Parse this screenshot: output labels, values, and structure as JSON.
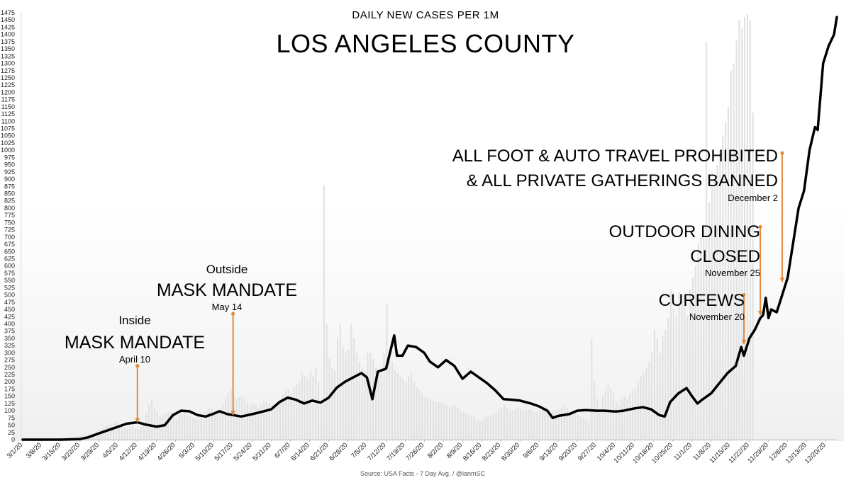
{
  "chart_data": {
    "type": "line",
    "subtitle": "DAILY NEW CASES PER 1M",
    "title": "LOS ANGELES COUNTY",
    "source": "Source: USA Facts - 7 Day Avg. / @ianmSC",
    "ylim": [
      0,
      1475
    ],
    "ytick_step": 25,
    "x_start": "3/1/20",
    "x_end": "12/24/20",
    "x_tick_labels": [
      "3/1/20",
      "3/8/20",
      "3/15/20",
      "3/22/20",
      "3/29/20",
      "4/5/20",
      "4/12/20",
      "4/19/20",
      "4/26/20",
      "5/3/20",
      "5/10/20",
      "5/17/20",
      "5/24/20",
      "5/31/20",
      "6/7/20",
      "6/14/20",
      "6/21/20",
      "6/28/20",
      "7/5/20",
      "7/12/20",
      "7/19/20",
      "7/26/20",
      "8/2/20",
      "8/9/20",
      "8/16/20",
      "8/23/20",
      "8/30/20",
      "9/6/20",
      "9/13/20",
      "9/20/20",
      "9/27/20",
      "10/4/20",
      "10/11/20",
      "10/18/20",
      "10/25/20",
      "11/1/20",
      "11/8/20",
      "11/15/20",
      "11/22/20",
      "11/29/20",
      "12/6/20",
      "12/13/20",
      "12/20/20"
    ],
    "series": [
      {
        "type": "bar",
        "color": "#e2e2e2",
        "values": [
          0,
          0,
          0,
          0,
          0,
          0,
          0,
          0,
          2,
          1,
          2,
          3,
          2,
          3,
          5,
          4,
          6,
          8,
          7,
          10,
          12,
          14,
          16,
          18,
          20,
          22,
          25,
          30,
          35,
          40,
          45,
          50,
          55,
          60,
          62,
          50,
          45,
          40,
          38,
          45,
          50,
          40,
          35,
          45,
          55,
          90,
          120,
          140,
          110,
          95,
          80,
          85,
          90,
          95,
          100,
          80,
          75,
          85,
          90,
          95,
          85,
          80,
          75,
          70,
          85,
          90,
          95,
          100,
          110,
          105,
          100,
          95,
          110,
          120,
          150,
          160,
          175,
          150,
          140,
          145,
          150,
          140,
          130,
          120,
          125,
          120,
          110,
          125,
          135,
          130,
          125,
          120,
          115,
          130,
          140,
          155,
          170,
          175,
          160,
          180,
          190,
          200,
          230,
          220,
          210,
          235,
          220,
          250,
          200,
          120,
          880,
          400,
          280,
          250,
          240,
          350,
          400,
          320,
          300,
          310,
          400,
          350,
          300,
          270,
          250,
          240,
          300,
          300,
          280,
          250,
          240,
          250,
          300,
          470,
          280,
          270,
          240,
          230,
          220,
          210,
          200,
          220,
          230,
          200,
          180,
          170,
          160,
          150,
          145,
          140,
          135,
          130,
          130,
          130,
          125,
          120,
          115,
          115,
          120,
          110,
          100,
          95,
          90,
          85,
          85,
          80,
          70,
          65,
          65,
          75,
          80,
          85,
          90,
          95,
          100,
          110,
          120,
          110,
          100,
          100,
          105,
          110,
          105,
          100,
          100,
          105,
          100,
          95,
          95,
          100,
          105,
          100,
          95,
          95,
          100,
          100,
          105,
          110,
          115,
          110,
          100,
          95,
          90,
          85,
          80,
          75,
          70,
          60,
          350,
          200,
          140,
          95,
          150,
          170,
          190,
          180,
          160,
          130,
          120,
          140,
          150,
          140,
          160,
          170,
          180,
          200,
          220,
          230,
          250,
          270,
          300,
          380,
          350,
          300,
          360,
          380,
          420,
          520,
          450,
          430,
          510,
          480,
          500,
          430,
          520,
          560,
          600,
          680,
          700,
          720,
          1375,
          820,
          880,
          900,
          950,
          1000,
          1050,
          1100,
          1150,
          1275,
          1300,
          1380,
          1450,
          1420,
          1460,
          1470,
          1450,
          1130
        ]
      },
      {
        "type": "line",
        "color": "#000000",
        "points": [
          [
            "3/1/20",
            0
          ],
          [
            "3/8/20",
            0
          ],
          [
            "3/15/20",
            0
          ],
          [
            "3/22/20",
            2
          ],
          [
            "3/25/20",
            8
          ],
          [
            "3/29/20",
            22
          ],
          [
            "4/2/20",
            35
          ],
          [
            "4/5/20",
            45
          ],
          [
            "4/8/20",
            55
          ],
          [
            "4/12/20",
            60
          ],
          [
            "4/15/20",
            52
          ],
          [
            "4/19/20",
            45
          ],
          [
            "4/22/20",
            50
          ],
          [
            "4/25/20",
            85
          ],
          [
            "4/28/20",
            100
          ],
          [
            "5/1/20",
            98
          ],
          [
            "5/4/20",
            85
          ],
          [
            "5/7/20",
            80
          ],
          [
            "5/10/20",
            90
          ],
          [
            "5/12/20",
            98
          ],
          [
            "5/15/20",
            88
          ],
          [
            "5/17/20",
            85
          ],
          [
            "5/20/20",
            80
          ],
          [
            "5/24/20",
            88
          ],
          [
            "5/27/20",
            95
          ],
          [
            "5/31/20",
            105
          ],
          [
            "6/3/20",
            130
          ],
          [
            "6/6/20",
            145
          ],
          [
            "6/9/20",
            138
          ],
          [
            "6/12/20",
            125
          ],
          [
            "6/15/20",
            135
          ],
          [
            "6/18/20",
            128
          ],
          [
            "6/21/20",
            145
          ],
          [
            "6/24/20",
            180
          ],
          [
            "6/27/20",
            200
          ],
          [
            "6/30/20",
            215
          ],
          [
            "7/3/20",
            230
          ],
          [
            "7/5/20",
            215
          ],
          [
            "7/7/20",
            140
          ],
          [
            "7/9/20",
            235
          ],
          [
            "7/12/20",
            245
          ],
          [
            "7/15/20",
            360
          ],
          [
            "7/16/20",
            290
          ],
          [
            "7/18/20",
            290
          ],
          [
            "7/20/20",
            325
          ],
          [
            "7/23/20",
            320
          ],
          [
            "7/26/20",
            300
          ],
          [
            "7/28/20",
            270
          ],
          [
            "7/31/20",
            250
          ],
          [
            "8/3/20",
            275
          ],
          [
            "8/6/20",
            255
          ],
          [
            "8/9/20",
            210
          ],
          [
            "8/12/20",
            235
          ],
          [
            "8/15/20",
            215
          ],
          [
            "8/18/20",
            195
          ],
          [
            "8/21/20",
            170
          ],
          [
            "8/24/20",
            140
          ],
          [
            "8/27/20",
            138
          ],
          [
            "8/30/20",
            135
          ],
          [
            "9/3/20",
            125
          ],
          [
            "9/6/20",
            115
          ],
          [
            "9/9/20",
            100
          ],
          [
            "9/11/20",
            75
          ],
          [
            "9/13/20",
            82
          ],
          [
            "9/17/20",
            88
          ],
          [
            "9/20/20",
            100
          ],
          [
            "9/23/20",
            102
          ],
          [
            "9/27/20",
            100
          ],
          [
            "9/30/20",
            100
          ],
          [
            "10/4/20",
            97
          ],
          [
            "10/7/20",
            100
          ],
          [
            "10/11/20",
            108
          ],
          [
            "10/14/20",
            112
          ],
          [
            "10/17/20",
            105
          ],
          [
            "10/20/20",
            85
          ],
          [
            "10/22/20",
            80
          ],
          [
            "10/24/20",
            130
          ],
          [
            "10/27/20",
            160
          ],
          [
            "10/30/20",
            178
          ],
          [
            "11/1/20",
            150
          ],
          [
            "11/3/20",
            125
          ],
          [
            "11/5/20",
            140
          ],
          [
            "11/8/20",
            160
          ],
          [
            "11/11/20",
            195
          ],
          [
            "11/14/20",
            230
          ],
          [
            "11/17/20",
            255
          ],
          [
            "11/19/20",
            320
          ],
          [
            "11/20/20",
            290
          ],
          [
            "11/22/20",
            350
          ],
          [
            "11/24/20",
            380
          ],
          [
            "11/26/20",
            420
          ],
          [
            "11/27/20",
            430
          ],
          [
            "11/28/20",
            490
          ],
          [
            "11/29/20",
            420
          ],
          [
            "11/30/20",
            450
          ],
          [
            "12/2/20",
            440
          ],
          [
            "12/4/20",
            500
          ],
          [
            "12/6/20",
            560
          ],
          [
            "12/8/20",
            680
          ],
          [
            "12/10/20",
            800
          ],
          [
            "12/12/20",
            860
          ],
          [
            "12/14/20",
            1000
          ],
          [
            "12/16/20",
            1080
          ],
          [
            "12/17/20",
            1070
          ],
          [
            "12/19/20",
            1300
          ],
          [
            "12/21/20",
            1360
          ],
          [
            "12/23/20",
            1400
          ],
          [
            "12/24/20",
            1460
          ]
        ]
      }
    ],
    "annotations": [
      {
        "lines": [
          "Inside",
          "MASK MANDATE",
          "April 10"
        ],
        "date": "4/12/20",
        "top": 255,
        "bottom": 60
      },
      {
        "lines": [
          "Outside",
          "MASK MANDATE",
          "May 14"
        ],
        "date": "5/17/20",
        "top": 435,
        "bottom": 85
      },
      {
        "lines": [
          "CURFEWS",
          "November 20"
        ],
        "date": "11/20/20",
        "top": 500,
        "bottom": 330
      },
      {
        "lines": [
          "OUTDOOR DINING",
          "CLOSED",
          "November 25"
        ],
        "date": "11/26/20",
        "top": 735,
        "bottom": 430
      },
      {
        "lines": [
          "ALL FOOT & AUTO TRAVEL PROHIBITED",
          "& ALL PRIVATE GATHERINGS BANNED",
          "December 2"
        ],
        "date": "12/4/20",
        "top": 990,
        "bottom": 545
      }
    ],
    "colors": {
      "line": "#000000",
      "bars": "#e2e2e2",
      "annotation": "#e08a3c",
      "grid_fill": "#f6f6f6"
    }
  }
}
